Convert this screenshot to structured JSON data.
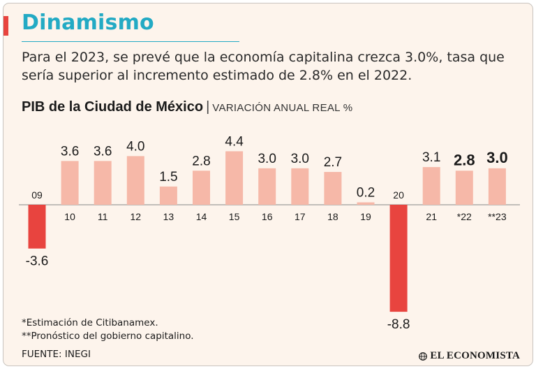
{
  "header": {
    "title": "Dinamismo",
    "subtitle": "Para el 2023, se prevé que la economía capitalina crezca 3.0%, tasa que sería superior al incremento estimado de 2.8% en el 2022."
  },
  "colors": {
    "accent_red": "#e8443f",
    "title_blue": "#23aac4",
    "bar_positive": "#f6b8a8",
    "bar_negative": "#e8443f"
  },
  "chart_data": {
    "type": "bar",
    "title": "PIB de la Ciudad de México",
    "unit": "VARIACIÓN ANUAL REAL %",
    "categories": [
      "09",
      "10",
      "11",
      "12",
      "13",
      "14",
      "15",
      "16",
      "17",
      "18",
      "19",
      "20",
      "21",
      "*22",
      "**23"
    ],
    "values": [
      -3.6,
      3.6,
      3.6,
      4.0,
      1.5,
      2.8,
      4.4,
      3.0,
      3.0,
      2.7,
      0.2,
      -8.8,
      3.1,
      2.8,
      3.0
    ],
    "value_labels": [
      "-3.6",
      "3.6",
      "3.6",
      "4.0",
      "1.5",
      "2.8",
      "4.4",
      "3.0",
      "3.0",
      "2.7",
      "0.2",
      "-8.8",
      "3.1",
      "2.8",
      "3.0"
    ],
    "highlighted": [
      "*22",
      "**23"
    ],
    "grid": false
  },
  "footnotes": {
    "note1": "*Estimación de Citibanamex.",
    "note2": "**Pronóstico del gobierno capitalino.",
    "source": "FUENTE: INEGI"
  },
  "brand": {
    "name": "EL ECONOMISTA",
    "logo_icon": "globe-icon"
  }
}
